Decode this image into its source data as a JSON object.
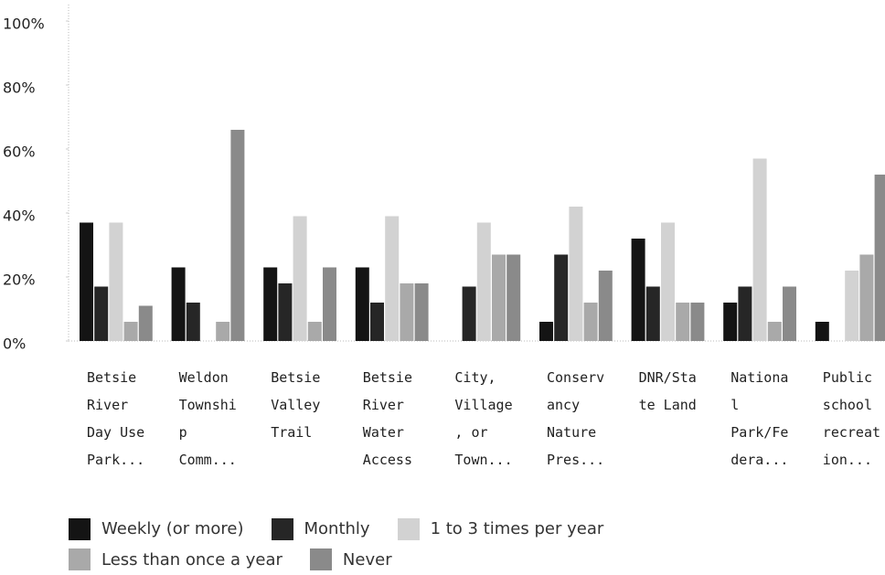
{
  "chart_data": {
    "type": "bar",
    "categories": [
      "Betsie River Day Use Park...",
      "Weldon Township Comm...",
      "Betsie Valley Trail",
      "Betsie River Water Access",
      "City, Village, or Town...",
      "Conservancy Nature Pres...",
      "DNR/State Land",
      "National Park/Federa...",
      "Public school recreation..."
    ],
    "series": [
      {
        "name": "Weekly (or more)",
        "color": "#141414",
        "values": [
          37,
          23,
          23,
          23,
          0,
          6,
          32,
          12,
          6
        ]
      },
      {
        "name": "Monthly",
        "color": "#262626",
        "values": [
          17,
          12,
          18,
          12,
          17,
          27,
          17,
          17,
          0
        ]
      },
      {
        "name": "1 to 3 times per year",
        "color": "#d2d2d2",
        "values": [
          37,
          0,
          39,
          39,
          37,
          42,
          37,
          57,
          22
        ]
      },
      {
        "name": "Less than once a year",
        "color": "#a9a9a9",
        "values": [
          6,
          6,
          6,
          18,
          27,
          12,
          12,
          6,
          27
        ]
      },
      {
        "name": "Never",
        "color": "#8a8a8a",
        "values": [
          11,
          66,
          23,
          18,
          27,
          22,
          12,
          17,
          52
        ]
      }
    ],
    "ylim": [
      0,
      100
    ],
    "yticks": [
      {
        "value": 0,
        "label": "0%"
      },
      {
        "value": 20,
        "label": "20%"
      },
      {
        "value": 40,
        "label": "40%"
      },
      {
        "value": 60,
        "label": "60%"
      },
      {
        "value": 80,
        "label": "80%"
      },
      {
        "value": 100,
        "label": "100%"
      }
    ]
  }
}
